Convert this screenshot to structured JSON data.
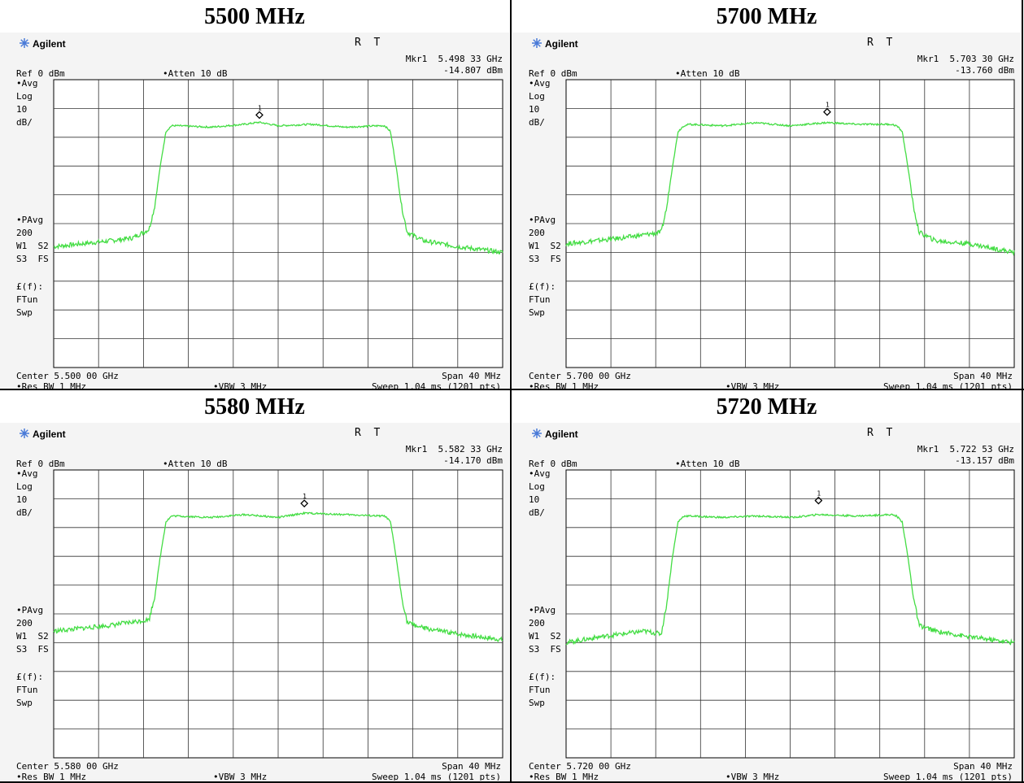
{
  "panels": [
    {
      "title": "5500 MHz",
      "brand": "Agilent",
      "status": "R  T",
      "marker_label": "Mkr1  5.498 33 GHz",
      "marker_level": "-14.807 dBm",
      "ref": "Ref 0 dBm",
      "atten": "•Atten 10 dB",
      "side_top": [
        "•Avg",
        "Log",
        "10",
        "dB/"
      ],
      "side_mid": [
        "•PAvg",
        "200",
        "W1  S2",
        "S3  FS"
      ],
      "side_bot": [
        "£(f):",
        "FTun",
        "Swp"
      ],
      "center": "Center 5.500 00 GHz",
      "span": "Span 40 MHz",
      "rbw": "•Res BW 1 MHz",
      "vbw": "•VBW 3 MHz",
      "sweep": "Sweep 1.04 ms (1201 pts)",
      "marker_number": "1"
    },
    {
      "title": "5700 MHz",
      "brand": "Agilent",
      "status": "R  T",
      "marker_label": "Mkr1  5.703 30 GHz",
      "marker_level": "-13.760 dBm",
      "ref": "Ref 0 dBm",
      "atten": "•Atten 10 dB",
      "side_top": [
        "•Avg",
        "Log",
        "10",
        "dB/"
      ],
      "side_mid": [
        "•PAvg",
        "200",
        "W1  S2",
        "S3  FS"
      ],
      "side_bot": [
        "£(f):",
        "FTun",
        "Swp"
      ],
      "center": "Center 5.700 00 GHz",
      "span": "Span 40 MHz",
      "rbw": "•Res BW 1 MHz",
      "vbw": "•VBW 3 MHz",
      "sweep": "Sweep 1.04 ms (1201 pts)",
      "marker_number": "1"
    },
    {
      "title": "5580 MHz",
      "brand": "Agilent",
      "status": "R  T",
      "marker_label": "Mkr1  5.582 33 GHz",
      "marker_level": "-14.170 dBm",
      "ref": "Ref 0 dBm",
      "atten": "•Atten 10 dB",
      "side_top": [
        "•Avg",
        "Log",
        "10",
        "dB/"
      ],
      "side_mid": [
        "•PAvg",
        "200",
        "W1  S2",
        "S3  FS"
      ],
      "side_bot": [
        "£(f):",
        "FTun",
        "Swp"
      ],
      "center": "Center 5.580 00 GHz",
      "span": "Span 40 MHz",
      "rbw": "•Res BW 1 MHz",
      "vbw": "•VBW 3 MHz",
      "sweep": "Sweep 1.04 ms (1201 pts)",
      "marker_number": "1"
    },
    {
      "title": "5720 MHz",
      "brand": "Agilent",
      "status": "R  T",
      "marker_label": "Mkr1  5.722 53 GHz",
      "marker_level": "-13.157 dBm",
      "ref": "Ref 0 dBm",
      "atten": "•Atten 10 dB",
      "side_top": [
        "•Avg",
        "Log",
        "10",
        "dB/"
      ],
      "side_mid": [
        "•PAvg",
        "200",
        "W1  S2",
        "S3  FS"
      ],
      "side_bot": [
        "£(f):",
        "FTun",
        "Swp"
      ],
      "center": "Center 5.720 00 GHz",
      "span": "Span 40 MHz",
      "rbw": "•Res BW 1 MHz",
      "vbw": "•VBW 3 MHz",
      "sweep": "Sweep 1.04 ms (1201 pts)",
      "marker_number": "1"
    }
  ],
  "colors": {
    "trace": "#44dd44",
    "grid": "#000000",
    "brand_icon": "#4a7bd8"
  },
  "chart_data": [
    {
      "type": "line",
      "x_unit": "GHz",
      "xlim": [
        5.48,
        5.52
      ],
      "ylim": [
        -100,
        0
      ],
      "grid": true,
      "x": [
        5.48,
        5.485,
        5.487,
        5.4885,
        5.489,
        5.4895,
        5.49,
        5.4905,
        5.491,
        5.494,
        5.497,
        5.4983,
        5.5,
        5.503,
        5.506,
        5.509,
        5.5095,
        5.51,
        5.5105,
        5.511,
        5.5115,
        5.513,
        5.516,
        5.52
      ],
      "y": [
        -58,
        -56,
        -55,
        -52,
        -44,
        -30,
        -18,
        -16,
        -16,
        -16.5,
        -15.5,
        -14.8,
        -16,
        -15.5,
        -16.5,
        -16,
        -16,
        -18,
        -30,
        -44,
        -53,
        -56,
        -58,
        -60
      ],
      "marker": {
        "x": 5.49833,
        "y": -14.807,
        "label": "1"
      }
    },
    {
      "type": "line",
      "x_unit": "GHz",
      "xlim": [
        5.68,
        5.72
      ],
      "ylim": [
        -100,
        0
      ],
      "grid": true,
      "x": [
        5.68,
        5.685,
        5.6885,
        5.689,
        5.6895,
        5.69,
        5.6905,
        5.691,
        5.694,
        5.697,
        5.7,
        5.7033,
        5.706,
        5.709,
        5.7095,
        5.71,
        5.7105,
        5.711,
        5.7115,
        5.713,
        5.716,
        5.72
      ],
      "y": [
        -57,
        -55,
        -53,
        -44,
        -30,
        -18,
        -16,
        -15.5,
        -16,
        -15,
        -16,
        -14.9,
        -15.5,
        -15.5,
        -16,
        -18,
        -30,
        -44,
        -53,
        -56,
        -57,
        -60
      ],
      "marker": {
        "x": 5.7033,
        "y": -13.76,
        "label": "1"
      }
    },
    {
      "type": "line",
      "x_unit": "GHz",
      "xlim": [
        5.56,
        5.6
      ],
      "ylim": [
        -100,
        0
      ],
      "grid": true,
      "x": [
        5.56,
        5.565,
        5.5685,
        5.569,
        5.5695,
        5.57,
        5.5705,
        5.571,
        5.574,
        5.577,
        5.58,
        5.5823,
        5.586,
        5.589,
        5.5895,
        5.59,
        5.5905,
        5.591,
        5.5915,
        5.593,
        5.596,
        5.6
      ],
      "y": [
        -56,
        -54,
        -52,
        -44,
        -30,
        -18,
        -16,
        -16,
        -16.5,
        -15.5,
        -16.5,
        -15,
        -15.5,
        -16,
        -16,
        -18,
        -30,
        -44,
        -53,
        -55,
        -57,
        -59
      ],
      "marker": {
        "x": 5.58233,
        "y": -14.17,
        "label": "1"
      }
    },
    {
      "type": "line",
      "x_unit": "GHz",
      "xlim": [
        5.7,
        5.74
      ],
      "ylim": [
        -100,
        0
      ],
      "grid": true,
      "x": [
        5.7,
        5.703,
        5.707,
        5.7085,
        5.709,
        5.7095,
        5.71,
        5.7105,
        5.711,
        5.714,
        5.717,
        5.7203,
        5.7225,
        5.726,
        5.729,
        5.7295,
        5.73,
        5.7305,
        5.731,
        5.7315,
        5.733,
        5.736,
        5.74
      ],
      "y": [
        -60,
        -58,
        -56,
        -57,
        -46,
        -30,
        -18,
        -16,
        -16,
        -16.5,
        -16,
        -16.5,
        -15.5,
        -16,
        -15.5,
        -16,
        -18,
        -30,
        -44,
        -54,
        -56,
        -58,
        -60
      ],
      "marker": {
        "x": 5.72253,
        "y": -13.157,
        "label": "1"
      }
    }
  ]
}
